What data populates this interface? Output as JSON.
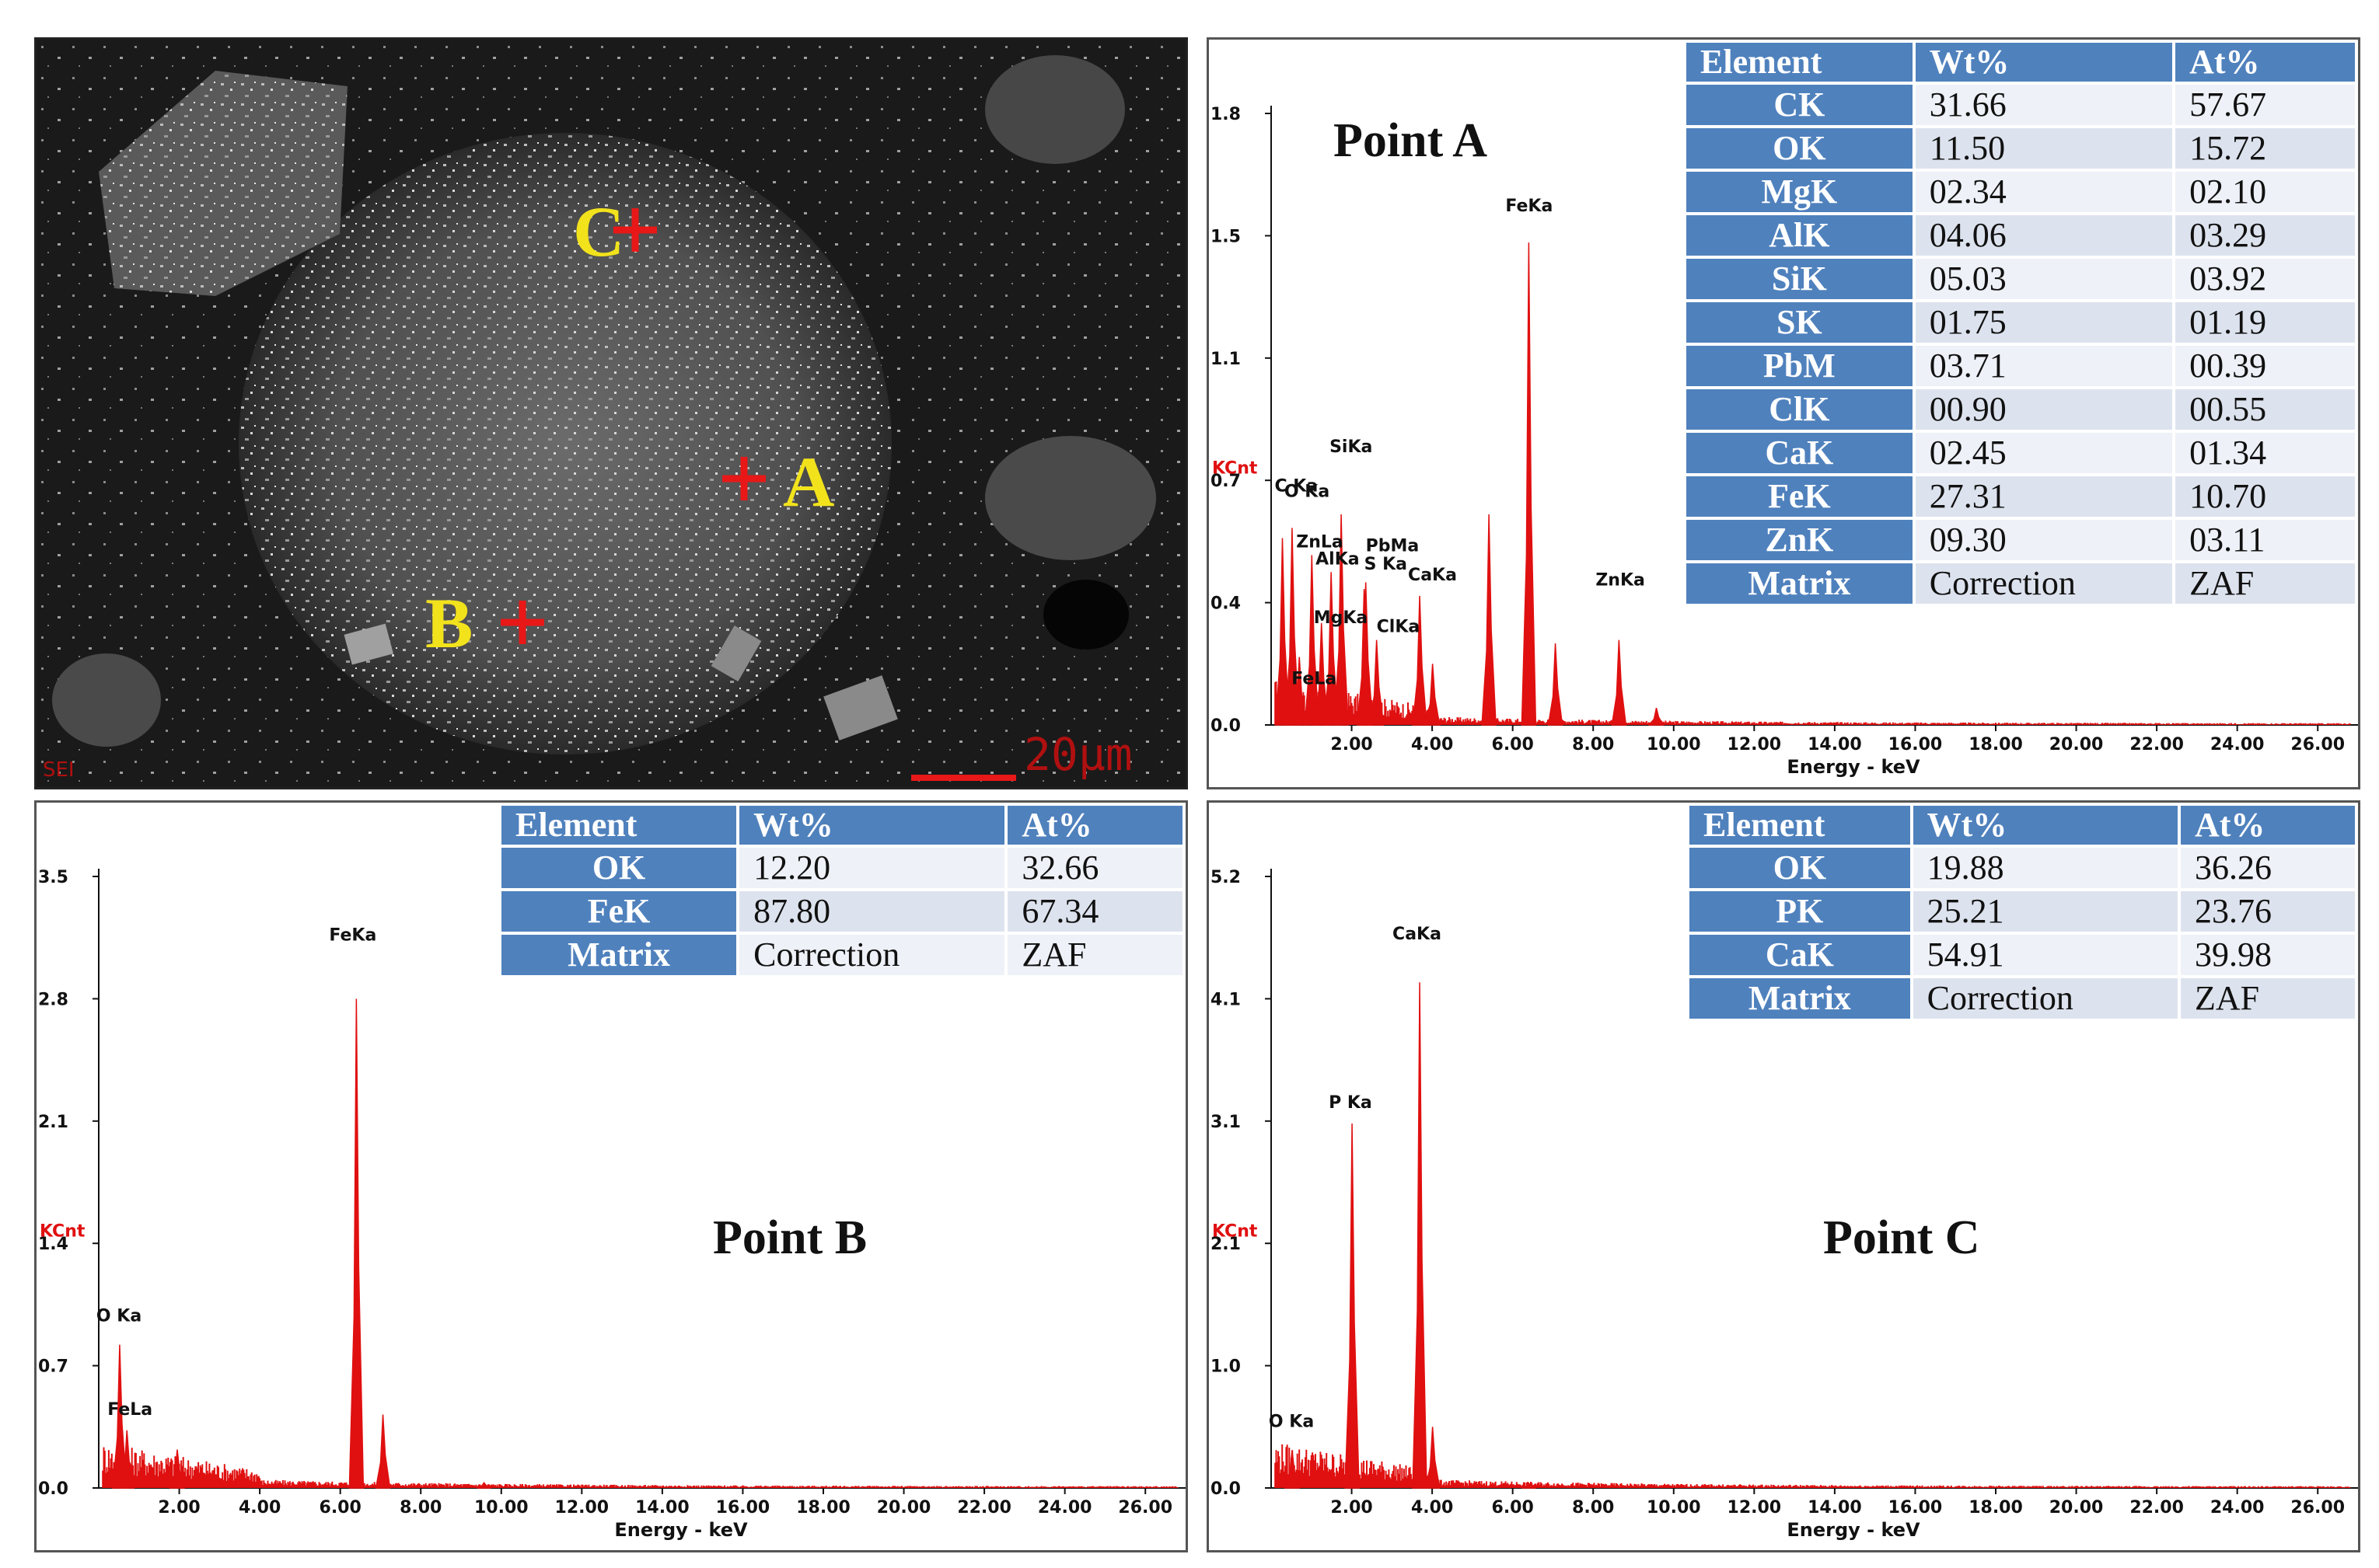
{
  "sem": {
    "markers": [
      {
        "label": "C"
      },
      {
        "label": "A"
      },
      {
        "label": "B"
      }
    ],
    "scale_bar_text": "20μm",
    "corner_text": "SEI",
    "marker_color": "#e81818",
    "label_color": "#f2e21c"
  },
  "chart_data": [
    {
      "type": "line",
      "title": "Point A",
      "xlabel": "Energy - keV",
      "ylabel": "KCnt",
      "xlim": [
        0,
        27
      ],
      "ylim": [
        0,
        1.8
      ],
      "x_ticks": [
        "2.00",
        "4.00",
        "6.00",
        "8.00",
        "10.00",
        "12.00",
        "14.00",
        "16.00",
        "18.00",
        "20.00",
        "22.00",
        "24.00",
        "26.00"
      ],
      "y_ticks": [
        "0.0",
        "0.4",
        "0.7",
        "1.1",
        "1.5",
        "1.8"
      ],
      "series_color": "#e01010",
      "peaks": [
        {
          "label": "C Ka",
          "x": 0.28,
          "y": 0.55
        },
        {
          "label": "O Ka",
          "x": 0.52,
          "y": 0.58
        },
        {
          "label": "FeLa",
          "x": 0.7,
          "y": 0.2
        },
        {
          "label": "ZnLa",
          "x": 1.01,
          "y": 0.5
        },
        {
          "label": "MgKa",
          "x": 1.25,
          "y": 0.3
        },
        {
          "label": "AlKa",
          "x": 1.49,
          "y": 0.45
        },
        {
          "label": "SiKa",
          "x": 1.74,
          "y": 0.62
        },
        {
          "label": "PbMa",
          "x": 2.35,
          "y": 0.42
        },
        {
          "label": "S Ka",
          "x": 2.31,
          "y": 0.4
        },
        {
          "label": "ClKa",
          "x": 2.62,
          "y": 0.25
        },
        {
          "label": "CaKa",
          "x": 3.69,
          "y": 0.38
        },
        {
          "label": "FeKa",
          "x": 6.4,
          "y": 1.42
        },
        {
          "label": "ZnKa",
          "x": 8.64,
          "y": 0.25
        }
      ],
      "extra_peaks": [
        {
          "x": 4.01,
          "y": 0.18
        },
        {
          "x": 5.41,
          "y": 0.62
        },
        {
          "x": 7.06,
          "y": 0.24
        },
        {
          "x": 9.57,
          "y": 0.05
        }
      ],
      "table": {
        "headers": [
          "Element",
          "Wt%",
          "At%"
        ],
        "rows": [
          [
            "CK",
            "31.66",
            "57.67"
          ],
          [
            "OK",
            "11.50",
            "15.72"
          ],
          [
            "MgK",
            "02.34",
            "02.10"
          ],
          [
            "AlK",
            "04.06",
            "03.29"
          ],
          [
            "SiK",
            "05.03",
            "03.92"
          ],
          [
            "SK",
            "01.75",
            "01.19"
          ],
          [
            "PbM",
            "03.71",
            "00.39"
          ],
          [
            "ClK",
            "00.90",
            "00.55"
          ],
          [
            "CaK",
            "02.45",
            "01.34"
          ],
          [
            "FeK",
            "27.31",
            "10.70"
          ],
          [
            "ZnK",
            "09.30",
            "03.11"
          ],
          [
            "Matrix",
            "Correction",
            "ZAF"
          ]
        ]
      }
    },
    {
      "type": "line",
      "title": "Point B",
      "xlabel": "Energy - keV",
      "ylabel": "KCnt",
      "xlim": [
        0,
        27
      ],
      "ylim": [
        0,
        3.5
      ],
      "x_ticks": [
        "2.00",
        "4.00",
        "6.00",
        "8.00",
        "10.00",
        "12.00",
        "14.00",
        "16.00",
        "18.00",
        "20.00",
        "22.00",
        "24.00",
        "26.00"
      ],
      "y_ticks": [
        "0.0",
        "0.7",
        "1.4",
        "2.1",
        "2.8",
        "3.5"
      ],
      "series_color": "#e01010",
      "peaks": [
        {
          "label": "O Ka",
          "x": 0.52,
          "y": 0.82
        },
        {
          "label": "FeLa",
          "x": 0.7,
          "y": 0.33
        },
        {
          "label": "FeKa",
          "x": 6.4,
          "y": 2.8
        }
      ],
      "extra_peaks": [
        {
          "x": 1.95,
          "y": 0.22
        },
        {
          "x": 7.06,
          "y": 0.42
        },
        {
          "x": 9.57,
          "y": 0.03
        }
      ],
      "table": {
        "headers": [
          "Element",
          "Wt%",
          "At%"
        ],
        "rows": [
          [
            "OK",
            "12.20",
            "32.66"
          ],
          [
            "FeK",
            "87.80",
            "67.34"
          ],
          [
            "Matrix",
            "Correction",
            "ZAF"
          ]
        ]
      }
    },
    {
      "type": "line",
      "title": "Point C",
      "xlabel": "Energy - keV",
      "ylabel": "KCnt",
      "xlim": [
        0,
        27
      ],
      "ylim": [
        0,
        5.2
      ],
      "x_ticks": [
        "2.00",
        "4.00",
        "6.00",
        "8.00",
        "10.00",
        "12.00",
        "14.00",
        "16.00",
        "18.00",
        "20.00",
        "22.00",
        "24.00",
        "26.00"
      ],
      "y_ticks": [
        "0.0",
        "1.0",
        "2.1",
        "3.1",
        "4.1",
        "5.2"
      ],
      "series_color": "#e01010",
      "peaks": [
        {
          "label": "O Ka",
          "x": 0.52,
          "y": 0.32
        },
        {
          "label": "P Ka",
          "x": 2.01,
          "y": 3.1
        },
        {
          "label": "CaKa",
          "x": 3.69,
          "y": 4.3
        }
      ],
      "extra_peaks": [
        {
          "x": 4.01,
          "y": 0.52
        },
        {
          "x": 6.4,
          "y": 0.04
        }
      ],
      "table": {
        "headers": [
          "Element",
          "Wt%",
          "At%"
        ],
        "rows": [
          [
            "OK",
            "19.88",
            "36.26"
          ],
          [
            "PK",
            "25.21",
            "23.76"
          ],
          [
            "CaK",
            "54.91",
            "39.98"
          ],
          [
            "Matrix",
            "Correction",
            "ZAF"
          ]
        ]
      }
    }
  ]
}
